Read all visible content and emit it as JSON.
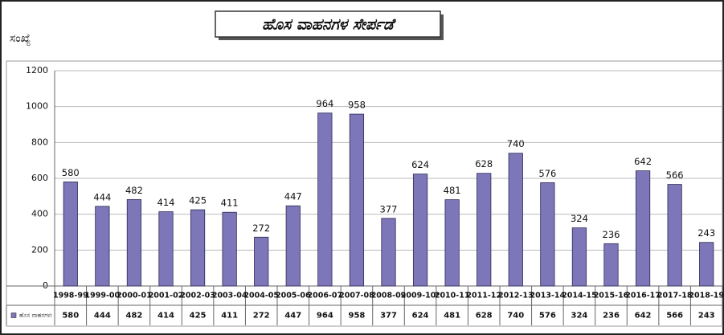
{
  "chart_data": {
    "type": "bar",
    "title": "ಹೊಸ ವಾಹನಗಳ ಸೇರ್ಪಡೆ",
    "y_label": "ಸಂಖ್ಯೆ",
    "categories": [
      "1998-99",
      "1999-00",
      "2000-01",
      "2001-02",
      "2002-03",
      "2003-04",
      "2004-05",
      "2005-06",
      "2006-07",
      "2007-08",
      "2008-09",
      "2009-10*",
      "2010-11",
      "2011-12",
      "2012-13",
      "2013-14",
      "2014-15",
      "2015-16",
      "2016-17",
      "2017-18",
      "2018-19"
    ],
    "series": [
      {
        "name": "ಹೊಸ ವಾಹನಗಳು",
        "color": "#7d76b8",
        "values": [
          580,
          444,
          482,
          414,
          425,
          411,
          272,
          447,
          964,
          958,
          377,
          624,
          481,
          628,
          740,
          576,
          324,
          236,
          642,
          566,
          243
        ]
      }
    ],
    "ylim": [
      0,
      1200
    ],
    "yticks": [
      0,
      200,
      400,
      600,
      800,
      1000,
      1200
    ],
    "grid": true
  }
}
